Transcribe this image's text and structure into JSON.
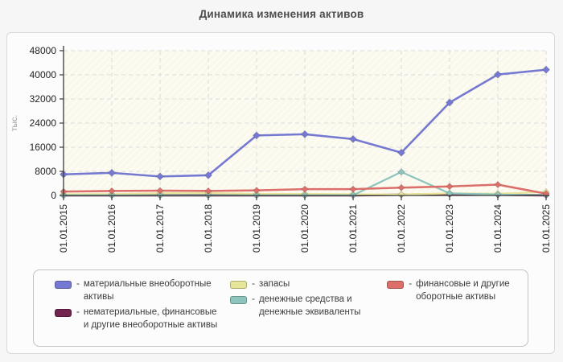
{
  "page": {
    "title": "Динамика изменения активов"
  },
  "chart_data": {
    "type": "line",
    "title": "Динамика изменения активов",
    "xlabel": "",
    "ylabel": "тыс.",
    "ylim": [
      0,
      48000
    ],
    "yticks": [
      0,
      8000,
      16000,
      24000,
      32000,
      40000,
      48000
    ],
    "grid": true,
    "legend_position": "bottom",
    "legend_dash": "-",
    "legend_columns": [
      [
        0,
        1
      ],
      [
        2,
        3
      ],
      [
        4
      ]
    ],
    "draw_order": [
      1,
      2,
      3,
      4,
      0
    ],
    "categories": [
      "01.01.2015",
      "01.01.2016",
      "01.01.2017",
      "01.01.2018",
      "01.01.2019",
      "01.01.2020",
      "01.01.2021",
      "01.01.2022",
      "01.01.2023",
      "01.01.2024",
      "01.01.2025"
    ],
    "series": [
      {
        "name": "материальные внеоборотные активы",
        "color": "#7679d2",
        "values": [
          7000,
          7500,
          6300,
          6700,
          19900,
          20300,
          18700,
          14200,
          30800,
          40100,
          41700
        ]
      },
      {
        "name": "нематериальные, финансовые и другие внеоборотные активы",
        "color": "#71244d",
        "values": [
          60,
          60,
          60,
          60,
          80,
          80,
          80,
          250,
          400,
          250,
          80
        ]
      },
      {
        "name": "запасы",
        "color": "#e7e599",
        "values": [
          400,
          450,
          750,
          800,
          550,
          500,
          400,
          300,
          700,
          600,
          1150
        ]
      },
      {
        "name": "денежные средства и денежные эквиваленты",
        "color": "#8ec4be",
        "values": [
          80,
          80,
          80,
          80,
          80,
          80,
          80,
          7800,
          700,
          300,
          120
        ]
      },
      {
        "name": "финансовые и другие оборотные активы",
        "color": "#dc6f6a",
        "values": [
          1300,
          1500,
          1600,
          1500,
          1700,
          2100,
          2100,
          2600,
          3000,
          3600,
          600
        ]
      }
    ],
    "style": {
      "plot_bg": "#faf9ec",
      "hatch_color": "#ffffff",
      "grid_color": "#dcdcdc",
      "axis_color": "#3a3a3a",
      "tick_label_color": "#222222",
      "ylabel_color": "#999999"
    }
  }
}
